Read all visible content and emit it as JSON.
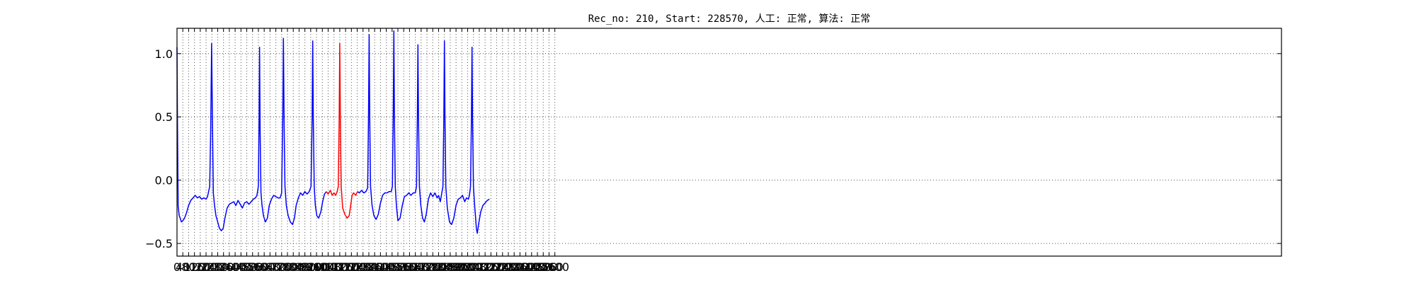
{
  "chart_data": {
    "type": "line",
    "title": "Rec_no: 210, Start: 228570, 人工: 正常, 算法: 正常",
    "xlabel": "",
    "ylabel": "",
    "xlim": [
      0,
      7600
    ],
    "ylim": [
      -0.6,
      1.2
    ],
    "grid": true,
    "grid_style": "dotted",
    "xticks": [
      0,
      40,
      80,
      120,
      160,
      200,
      240,
      280,
      320,
      360,
      400,
      440,
      480,
      520,
      560,
      600,
      640,
      680,
      720,
      760,
      800,
      840,
      880,
      920,
      960,
      1000,
      1040,
      1080,
      1120,
      1160,
      1200,
      1240,
      1280,
      1320,
      1360,
      1400,
      1440,
      1480,
      1520,
      1560,
      1600,
      1640,
      1680,
      1720,
      1760,
      1800,
      1840,
      1880,
      1920,
      1960,
      2000,
      2040,
      2080,
      2120,
      2160,
      2200,
      2240,
      2280,
      2320,
      2360,
      2400,
      2440,
      2480,
      2520,
      2560,
      2600
    ],
    "x_tick_labels": [
      "0",
      "40",
      "80",
      "120",
      "160",
      "200",
      "240",
      "280",
      "320",
      "360",
      "400",
      "440",
      "480",
      "520",
      "560",
      "600",
      "640",
      "680",
      "720",
      "760",
      "800",
      "840",
      "880",
      "920",
      "960",
      "1000",
      "1040",
      "1080",
      "1120",
      "1160",
      "1200",
      "1240",
      "1280",
      "1320",
      "1360",
      "1400",
      "1440",
      "1480",
      "1520",
      "1560",
      "1600",
      "1640",
      "1680",
      "1720",
      "1760",
      "1800",
      "1840",
      "1880",
      "1920",
      "1960",
      "2000",
      "2040",
      "2080",
      "2120",
      "2160",
      "2200",
      "2240",
      "2280",
      "2320",
      "2360",
      "2400",
      "2440",
      "2480",
      "2520",
      "2560",
      "2600"
    ],
    "y_tick_labels": [
      "1.0",
      "0.5",
      "0.0",
      "−0.5"
    ],
    "yticks": [
      1.0,
      0.5,
      0.0,
      -0.5
    ],
    "series": [
      {
        "color": "#0000ff",
        "points": [
          [
            0,
            1.05
          ],
          [
            3,
            0.5
          ],
          [
            8,
            -0.2
          ],
          [
            15,
            -0.28
          ],
          [
            22,
            -0.3
          ],
          [
            30,
            -0.33
          ],
          [
            40,
            -0.32
          ],
          [
            52,
            -0.3
          ],
          [
            65,
            -0.26
          ],
          [
            80,
            -0.2
          ],
          [
            95,
            -0.16
          ],
          [
            110,
            -0.14
          ],
          [
            125,
            -0.12
          ],
          [
            140,
            -0.14
          ],
          [
            155,
            -0.13
          ],
          [
            170,
            -0.15
          ],
          [
            185,
            -0.14
          ],
          [
            200,
            -0.15
          ],
          [
            210,
            -0.13
          ],
          [
            225,
            -0.05
          ],
          [
            232,
            0.4
          ],
          [
            238,
            1.08
          ],
          [
            244,
            0.45
          ],
          [
            250,
            -0.1
          ],
          [
            258,
            -0.2
          ],
          [
            268,
            -0.28
          ],
          [
            280,
            -0.33
          ],
          [
            292,
            -0.38
          ],
          [
            305,
            -0.4
          ],
          [
            318,
            -0.38
          ],
          [
            330,
            -0.3
          ],
          [
            345,
            -0.22
          ],
          [
            360,
            -0.19
          ],
          [
            375,
            -0.18
          ],
          [
            390,
            -0.17
          ],
          [
            405,
            -0.2
          ],
          [
            420,
            -0.16
          ],
          [
            435,
            -0.19
          ],
          [
            450,
            -0.22
          ],
          [
            465,
            -0.18
          ],
          [
            480,
            -0.17
          ],
          [
            495,
            -0.19
          ],
          [
            510,
            -0.17
          ],
          [
            525,
            -0.15
          ],
          [
            540,
            -0.14
          ],
          [
            550,
            -0.12
          ],
          [
            560,
            -0.05
          ],
          [
            565,
            0.5
          ],
          [
            568,
            1.05
          ],
          [
            572,
            0.4
          ],
          [
            578,
            -0.1
          ],
          [
            585,
            -0.2
          ],
          [
            595,
            -0.28
          ],
          [
            608,
            -0.33
          ],
          [
            622,
            -0.3
          ],
          [
            635,
            -0.2
          ],
          [
            650,
            -0.15
          ],
          [
            665,
            -0.12
          ],
          [
            680,
            -0.13
          ],
          [
            695,
            -0.14
          ],
          [
            710,
            -0.14
          ],
          [
            720,
            -0.1
          ],
          [
            728,
            0.5
          ],
          [
            732,
            1.12
          ],
          [
            737,
            0.45
          ],
          [
            743,
            -0.05
          ],
          [
            752,
            -0.2
          ],
          [
            765,
            -0.28
          ],
          [
            780,
            -0.33
          ],
          [
            795,
            -0.35
          ],
          [
            808,
            -0.3
          ],
          [
            820,
            -0.2
          ],
          [
            835,
            -0.14
          ],
          [
            850,
            -0.1
          ],
          [
            865,
            -0.12
          ],
          [
            880,
            -0.09
          ],
          [
            895,
            -0.11
          ],
          [
            910,
            -0.09
          ],
          [
            922,
            -0.05
          ],
          [
            930,
            0.5
          ],
          [
            934,
            1.1
          ],
          [
            938,
            0.5
          ],
          [
            944,
            -0.05
          ],
          [
            952,
            -0.2
          ],
          [
            962,
            -0.28
          ],
          [
            975,
            -0.3
          ],
          [
            990,
            -0.25
          ],
          [
            1002,
            -0.17
          ],
          [
            1015,
            -0.11
          ],
          [
            1028,
            -0.09
          ]
        ]
      },
      {
        "color": "#ff0000",
        "points": [
          [
            1028,
            -0.09
          ],
          [
            1040,
            -0.11
          ],
          [
            1055,
            -0.08
          ],
          [
            1068,
            -0.12
          ],
          [
            1080,
            -0.1
          ],
          [
            1092,
            -0.12
          ],
          [
            1102,
            -0.09
          ],
          [
            1110,
            -0.05
          ],
          [
            1116,
            0.5
          ],
          [
            1120,
            1.08
          ],
          [
            1124,
            0.5
          ],
          [
            1130,
            -0.05
          ],
          [
            1140,
            -0.22
          ],
          [
            1155,
            -0.27
          ],
          [
            1170,
            -0.3
          ],
          [
            1185,
            -0.28
          ],
          [
            1195,
            -0.2
          ],
          [
            1205,
            -0.12
          ],
          [
            1215,
            -0.1
          ],
          [
            1230,
            -0.12
          ],
          [
            1242,
            -0.09
          ]
        ]
      },
      {
        "color": "#0000ff",
        "points": [
          [
            1242,
            -0.09
          ],
          [
            1255,
            -0.1
          ],
          [
            1270,
            -0.08
          ],
          [
            1285,
            -0.1
          ],
          [
            1300,
            -0.09
          ],
          [
            1312,
            -0.06
          ],
          [
            1318,
            0.5
          ],
          [
            1322,
            1.15
          ],
          [
            1326,
            0.5
          ],
          [
            1332,
            -0.05
          ],
          [
            1342,
            -0.2
          ],
          [
            1355,
            -0.28
          ],
          [
            1370,
            -0.31
          ],
          [
            1385,
            -0.27
          ],
          [
            1400,
            -0.18
          ],
          [
            1415,
            -0.12
          ],
          [
            1430,
            -0.1
          ],
          [
            1445,
            -0.1
          ],
          [
            1460,
            -0.09
          ],
          [
            1474,
            -0.09
          ],
          [
            1482,
            -0.05
          ],
          [
            1488,
            0.5
          ],
          [
            1492,
            1.18
          ],
          [
            1496,
            0.5
          ],
          [
            1502,
            -0.05
          ],
          [
            1510,
            -0.2
          ],
          [
            1520,
            -0.32
          ],
          [
            1535,
            -0.3
          ],
          [
            1550,
            -0.2
          ],
          [
            1565,
            -0.13
          ],
          [
            1580,
            -0.12
          ],
          [
            1595,
            -0.1
          ],
          [
            1610,
            -0.12
          ],
          [
            1625,
            -0.1
          ],
          [
            1640,
            -0.1
          ],
          [
            1648,
            -0.05
          ],
          [
            1654,
            0.5
          ],
          [
            1658,
            1.07
          ],
          [
            1662,
            0.5
          ],
          [
            1668,
            -0.05
          ],
          [
            1678,
            -0.2
          ],
          [
            1690,
            -0.3
          ],
          [
            1702,
            -0.33
          ],
          [
            1715,
            -0.27
          ],
          [
            1730,
            -0.15
          ],
          [
            1745,
            -0.1
          ],
          [
            1760,
            -0.13
          ],
          [
            1775,
            -0.1
          ],
          [
            1790,
            -0.14
          ],
          [
            1800,
            -0.12
          ],
          [
            1812,
            -0.17
          ],
          [
            1822,
            -0.1
          ],
          [
            1830,
            -0.05
          ],
          [
            1836,
            0.5
          ],
          [
            1840,
            1.1
          ],
          [
            1844,
            0.5
          ],
          [
            1850,
            -0.05
          ],
          [
            1860,
            -0.22
          ],
          [
            1875,
            -0.33
          ],
          [
            1890,
            -0.35
          ],
          [
            1905,
            -0.3
          ],
          [
            1920,
            -0.2
          ],
          [
            1935,
            -0.15
          ],
          [
            1950,
            -0.14
          ],
          [
            1965,
            -0.12
          ],
          [
            1980,
            -0.17
          ],
          [
            1992,
            -0.14
          ],
          [
            2005,
            -0.15
          ],
          [
            2012,
            -0.12
          ],
          [
            2020,
            -0.05
          ],
          [
            2026,
            0.5
          ],
          [
            2030,
            1.05
          ],
          [
            2034,
            0.45
          ],
          [
            2040,
            -0.05
          ],
          [
            2048,
            -0.2
          ],
          [
            2055,
            -0.3
          ],
          [
            2060,
            -0.38
          ],
          [
            2066,
            -0.42
          ],
          [
            2075,
            -0.35
          ],
          [
            2090,
            -0.25
          ],
          [
            2105,
            -0.2
          ],
          [
            2120,
            -0.18
          ],
          [
            2135,
            -0.16
          ],
          [
            2150,
            -0.15
          ]
        ]
      }
    ]
  }
}
